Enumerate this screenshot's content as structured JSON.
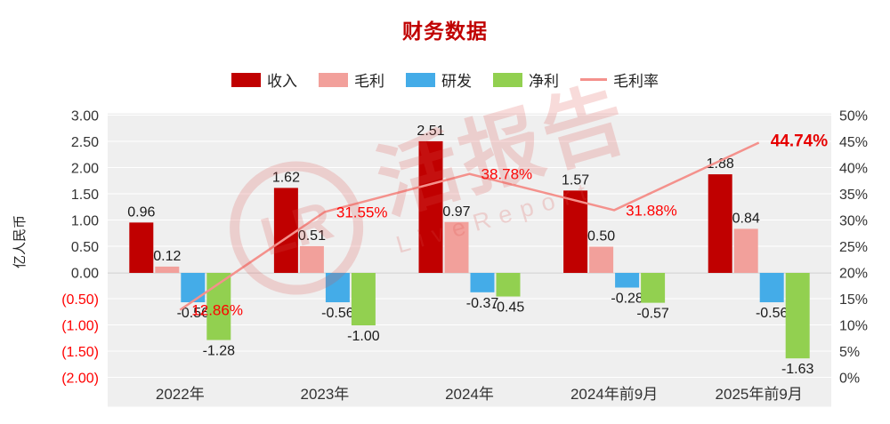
{
  "title": "财务数据",
  "legend": {
    "items": [
      {
        "key": "revenue",
        "label": "收入"
      },
      {
        "key": "gross",
        "label": "毛利"
      },
      {
        "key": "rd",
        "label": "研发"
      },
      {
        "key": "net",
        "label": "净利"
      },
      {
        "key": "margin",
        "label": "毛利率"
      }
    ]
  },
  "colors": {
    "revenue": "#c00000",
    "gross": "#f2a09b",
    "rd": "#44ace8",
    "net": "#92d050",
    "margin_line": "#f4918c",
    "label_red": "#ff0000",
    "final_label": "#e60000",
    "negative_axis": "#ff0000",
    "plot_bg": "#efefef",
    "axis_text": "#333333"
  },
  "watermark": {
    "logo_text": "LR",
    "text": "活报告",
    "subtext": "LiveReport"
  },
  "axes": {
    "left_title": "亿人民币",
    "left_ticks": [
      "3.00",
      "2.50",
      "2.00",
      "1.50",
      "1.00",
      "0.50",
      "0.00",
      "(0.50)",
      "(1.00)",
      "(1.50)",
      "(2.00)"
    ],
    "right_ticks": [
      "50%",
      "45%",
      "40%",
      "35%",
      "30%",
      "25%",
      "20%",
      "15%",
      "10%",
      "5%",
      "0%"
    ]
  },
  "chart_data": {
    "type": "bar",
    "title": "财务数据",
    "categories": [
      "2022年",
      "2023年",
      "2024年",
      "2024年前9月",
      "2025年前9月"
    ],
    "series": [
      {
        "name": "收入",
        "values": [
          0.96,
          1.62,
          2.51,
          1.57,
          1.88
        ]
      },
      {
        "name": "毛利",
        "values": [
          0.12,
          0.51,
          0.97,
          0.5,
          0.84
        ]
      },
      {
        "name": "研发",
        "values": [
          -0.56,
          -0.56,
          -0.37,
          -0.28,
          -0.56
        ]
      },
      {
        "name": "净利",
        "values": [
          -1.28,
          -1.0,
          -0.45,
          -0.57,
          -1.63
        ]
      }
    ],
    "line_series": {
      "name": "毛利率",
      "values": [
        12.86,
        31.55,
        38.78,
        31.88,
        44.74
      ],
      "unit": "%"
    },
    "xlabel": "",
    "ylabel": "亿人民币",
    "left_ylim": [
      -2.0,
      3.0
    ],
    "right_ylim": [
      0,
      50
    ],
    "grid": true,
    "legend_position": "top"
  }
}
